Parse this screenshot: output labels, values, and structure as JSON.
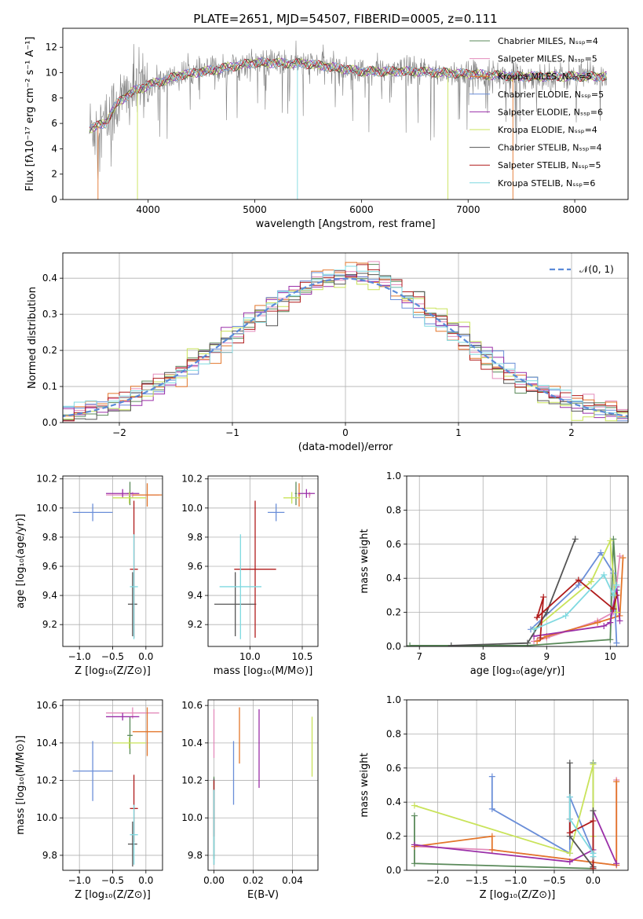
{
  "figure_title": "PLATE=2651, MJD=54507, FIBERID=0005, z=0.111",
  "colors": {
    "chabrier_miles": "#5a8a5a",
    "salpeter_miles": "#e38bbb",
    "kroupa_miles": "#e3762b",
    "chabrier_elodie": "#6a8ed8",
    "salpeter_elodie": "#9a2fa8",
    "kroupa_elodie": "#c9e35a",
    "chabrier_stelib": "#555555",
    "salpeter_stelib": "#b01c1c",
    "kroupa_stelib": "#7fd9e0",
    "data_spectrum": "#808080",
    "gaussian": "#5b8ad8"
  },
  "chart_data": [
    {
      "id": "spectrum",
      "type": "line",
      "xlabel": "wavelength [Angstrom, rest frame]",
      "ylabel": "Flux [fλ10⁻¹⁷ erg cm⁻² s⁻¹ A⁻¹]",
      "xlim": [
        3200,
        8500
      ],
      "ylim": [
        0,
        13.5
      ],
      "xticks": [
        4000,
        5000,
        6000,
        7000,
        8000
      ],
      "yticks": [
        0,
        2,
        4,
        6,
        8,
        10,
        12
      ],
      "grid": false,
      "legend_position": "top-right",
      "legend": [
        "Chabrier MILES, Nₛₛₚ=4",
        "Salpeter MILES, Nₛₛₚ=5",
        "Kroupa MILES, Nₛₛₚ=5",
        "Chabrier ELODIE, Nₛₛₚ=5",
        "Salpeter ELODIE, Nₛₛₚ=6",
        "Kroupa ELODIE, Nₛₛₚ=4",
        "Chabrier STELIB, Nₛₛₚ=4",
        "Salpeter STELIB, Nₛₛₚ=5",
        "Kroupa STELIB, Nₛₛₚ=6"
      ],
      "continuum": [
        [
          3450,
          5.6
        ],
        [
          3600,
          6.0
        ],
        [
          3700,
          7.5
        ],
        [
          3850,
          8.5
        ],
        [
          4000,
          9.0
        ],
        [
          4300,
          9.8
        ],
        [
          4600,
          10.2
        ],
        [
          5000,
          10.8
        ],
        [
          5500,
          10.7
        ],
        [
          6000,
          10.1
        ],
        [
          6500,
          10.1
        ],
        [
          7000,
          9.9
        ],
        [
          7500,
          9.7
        ],
        [
          8000,
          9.7
        ],
        [
          8300,
          9.7
        ]
      ]
    },
    {
      "id": "residuals",
      "type": "histogram",
      "xlabel": "(data-model)/error",
      "ylabel": "Normed distribution",
      "xlim": [
        -2.5,
        2.5
      ],
      "ylim": [
        0,
        0.47
      ],
      "xticks": [
        -2,
        -1,
        0,
        1,
        2
      ],
      "yticks": [
        0.0,
        0.1,
        0.2,
        0.3,
        0.4
      ],
      "grid": true,
      "bin_width": 0.1,
      "legend": [
        "𝒩(0, 1)"
      ],
      "legend_position": "top-right"
    },
    {
      "id": "age_vs_Z",
      "type": "errorbar",
      "xlabel": "Z [log₁₀(Z/Z⊙)]",
      "ylabel": "age  [log₁₀(age/yr)]",
      "xlim": [
        -1.25,
        0.25
      ],
      "ylim": [
        9.05,
        10.22
      ],
      "xticks": [
        -1.0,
        -0.5,
        0.0
      ],
      "yticks": [
        9.2,
        9.4,
        9.6,
        9.8,
        10.0,
        10.2
      ],
      "grid": true,
      "points": [
        {
          "model": "chabrier_miles",
          "x": -0.24,
          "y": 10.1,
          "xerr": 0.04,
          "yerr": 0.08
        },
        {
          "model": "salpeter_miles",
          "x": -0.2,
          "y": 10.09,
          "xerr": 0.4,
          "yerr": 0.02
        },
        {
          "model": "kroupa_miles",
          "x": 0.02,
          "y": 10.09,
          "xerr": 0.22,
          "yerr": 0.08
        },
        {
          "model": "chabrier_elodie",
          "x": -0.8,
          "y": 9.97,
          "xerr": 0.3,
          "yerr": 0.06
        },
        {
          "model": "salpeter_elodie",
          "x": -0.35,
          "y": 10.1,
          "xerr": 0.25,
          "yerr": 0.03
        },
        {
          "model": "kroupa_elodie",
          "x": -0.25,
          "y": 10.07,
          "xerr": 0.25,
          "yerr": 0.04
        },
        {
          "model": "chabrier_stelib",
          "x": -0.2,
          "y": 9.34,
          "xerr": 0.07,
          "yerr": 0.22
        },
        {
          "model": "salpeter_stelib",
          "x": -0.18,
          "y": 9.58,
          "xerr": 0.06,
          "yerr": 0.47
        },
        {
          "model": "kroupa_stelib",
          "x": -0.18,
          "y": 9.46,
          "xerr": 0.06,
          "yerr": 0.36
        }
      ]
    },
    {
      "id": "age_vs_mass",
      "type": "errorbar",
      "xlabel": "mass [log₁₀(M/M⊙)]",
      "xlim": [
        9.6,
        10.65
      ],
      "ylim": [
        9.05,
        10.22
      ],
      "xticks": [
        10.0,
        10.5
      ],
      "yticks": [
        9.2,
        9.4,
        9.6,
        9.8,
        10.0,
        10.2
      ],
      "grid": true,
      "points": [
        {
          "model": "chabrier_miles",
          "x": 10.44,
          "y": 10.1,
          "xerr": 0.01,
          "yerr": 0.08
        },
        {
          "model": "salpeter_miles",
          "x": 10.57,
          "y": 10.09,
          "xerr": 0.01,
          "yerr": 0.02
        },
        {
          "model": "kroupa_miles",
          "x": 10.47,
          "y": 10.09,
          "xerr": 0.01,
          "yerr": 0.08
        },
        {
          "model": "chabrier_elodie",
          "x": 10.25,
          "y": 9.97,
          "xerr": 0.08,
          "yerr": 0.06
        },
        {
          "model": "salpeter_elodie",
          "x": 10.54,
          "y": 10.1,
          "xerr": 0.08,
          "yerr": 0.03
        },
        {
          "model": "kroupa_elodie",
          "x": 10.4,
          "y": 10.07,
          "xerr": 0.08,
          "yerr": 0.04
        },
        {
          "model": "chabrier_stelib",
          "x": 9.86,
          "y": 9.34,
          "xerr": 0.2,
          "yerr": 0.22
        },
        {
          "model": "salpeter_stelib",
          "x": 10.05,
          "y": 9.58,
          "xerr": 0.2,
          "yerr": 0.47
        },
        {
          "model": "kroupa_stelib",
          "x": 9.91,
          "y": 9.46,
          "xerr": 0.2,
          "yerr": 0.36
        }
      ]
    },
    {
      "id": "weight_vs_age",
      "type": "line",
      "xlabel": "age  [log₁₀(age/yr)]",
      "ylabel": "mass weight",
      "xlim": [
        6.8,
        10.28
      ],
      "ylim": [
        0,
        1.0
      ],
      "xticks": [
        7,
        8,
        9,
        10
      ],
      "yticks": [
        0.0,
        0.2,
        0.4,
        0.6,
        0.8,
        1.0
      ],
      "grid": true,
      "series": [
        {
          "model": "chabrier_miles",
          "x": [
            6.85,
            8.7,
            10.0,
            10.05,
            10.1
          ],
          "y": [
            0.005,
            0.005,
            0.04,
            0.63,
            0.33
          ]
        },
        {
          "model": "salpeter_miles",
          "x": [
            8.8,
            9.0,
            9.8,
            10.05,
            10.15
          ],
          "y": [
            0.03,
            0.05,
            0.15,
            0.2,
            0.53
          ]
        },
        {
          "model": "kroupa_miles",
          "x": [
            8.85,
            9.0,
            9.8,
            10.15,
            10.2
          ],
          "y": [
            0.03,
            0.06,
            0.14,
            0.18,
            0.52
          ]
        },
        {
          "model": "chabrier_elodie",
          "x": [
            8.75,
            9.5,
            9.85,
            10.05,
            10.1
          ],
          "y": [
            0.1,
            0.36,
            0.55,
            0.43,
            0.02
          ]
        },
        {
          "model": "salpeter_elodie",
          "x": [
            8.8,
            9.9,
            10.0,
            10.1,
            10.15
          ],
          "y": [
            0.06,
            0.12,
            0.14,
            0.35,
            0.15
          ]
        },
        {
          "model": "kroupa_elodie",
          "x": [
            8.8,
            9.7,
            10.0,
            10.1
          ],
          "y": [
            0.1,
            0.38,
            0.62,
            0.2
          ]
        },
        {
          "model": "chabrier_stelib",
          "x": [
            7.5,
            8.7,
            9.0,
            9.45
          ],
          "y": [
            0.005,
            0.02,
            0.2,
            0.63
          ]
        },
        {
          "model": "salpeter_stelib",
          "x": [
            8.9,
            8.95,
            8.85,
            9.5,
            10.05,
            10.1
          ],
          "y": [
            0.05,
            0.29,
            0.17,
            0.39,
            0.22,
            0.3
          ]
        },
        {
          "model": "kroupa_stelib",
          "x": [
            8.8,
            9.3,
            9.9,
            10.05,
            10.1
          ],
          "y": [
            0.1,
            0.18,
            0.42,
            0.3,
            0.36
          ]
        }
      ]
    },
    {
      "id": "mass_vs_Z",
      "type": "errorbar",
      "xlabel": "Z [log₁₀(Z/Z⊙)]",
      "ylabel": "mass [log₁₀(M/M⊙)]",
      "xlim": [
        -1.25,
        0.25
      ],
      "ylim": [
        9.72,
        10.63
      ],
      "xticks": [
        -1.0,
        -0.5,
        0.0
      ],
      "yticks": [
        9.8,
        10.0,
        10.2,
        10.4,
        10.6
      ],
      "grid": true,
      "points": [
        {
          "model": "chabrier_miles",
          "x": -0.24,
          "y": 10.44,
          "xerr": 0.04,
          "yerr": 0.1
        },
        {
          "model": "salpeter_miles",
          "x": -0.2,
          "y": 10.56,
          "xerr": 0.4,
          "yerr": 0.03
        },
        {
          "model": "kroupa_miles",
          "x": 0.02,
          "y": 10.46,
          "xerr": 0.22,
          "yerr": 0.13
        },
        {
          "model": "chabrier_elodie",
          "x": -0.8,
          "y": 10.25,
          "xerr": 0.3,
          "yerr": 0.16
        },
        {
          "model": "salpeter_elodie",
          "x": -0.35,
          "y": 10.54,
          "xerr": 0.25,
          "yerr": 0.02
        },
        {
          "model": "kroupa_elodie",
          "x": -0.25,
          "y": 10.4,
          "xerr": 0.25,
          "yerr": 0.03
        },
        {
          "model": "chabrier_stelib",
          "x": -0.2,
          "y": 9.86,
          "xerr": 0.07,
          "yerr": 0.12
        },
        {
          "model": "salpeter_stelib",
          "x": -0.18,
          "y": 10.05,
          "xerr": 0.06,
          "yerr": 0.18
        },
        {
          "model": "kroupa_stelib",
          "x": -0.18,
          "y": 9.91,
          "xerr": 0.06,
          "yerr": 0.16
        }
      ]
    },
    {
      "id": "mass_vs_ebv",
      "type": "errorbar",
      "xlabel": "E(B-V)",
      "xlim": [
        -0.003,
        0.053
      ],
      "ylim": [
        9.72,
        10.63
      ],
      "xticks": [
        0.0,
        0.02,
        0.04
      ],
      "yticks": [
        9.8,
        10.0,
        10.2,
        10.4,
        10.6
      ],
      "grid": true,
      "points": [
        {
          "model": "chabrier_miles",
          "x": 0.0,
          "y": 10.0,
          "xerr": 0.0,
          "yerr": 0.22
        },
        {
          "model": "salpeter_miles",
          "x": 0.0,
          "y": 10.45,
          "xerr": 0.0,
          "yerr": 0.13
        },
        {
          "model": "kroupa_miles",
          "x": 0.013,
          "y": 10.44,
          "xerr": 0.0,
          "yerr": 0.15
        },
        {
          "model": "chabrier_elodie",
          "x": 0.01,
          "y": 10.24,
          "xerr": 0.0,
          "yerr": 0.17
        },
        {
          "model": "salpeter_elodie",
          "x": 0.023,
          "y": 10.37,
          "xerr": 0.0,
          "yerr": 0.21
        },
        {
          "model": "kroupa_elodie",
          "x": 0.05,
          "y": 10.38,
          "xerr": 0.0,
          "yerr": 0.16
        },
        {
          "model": "chabrier_stelib",
          "x": 0.0,
          "y": 9.98,
          "xerr": 0.0,
          "yerr": 0.23
        },
        {
          "model": "salpeter_stelib",
          "x": 0.0,
          "y": 10.05,
          "xerr": 0.0,
          "yerr": 0.15
        },
        {
          "model": "kroupa_stelib",
          "x": 0.0,
          "y": 9.95,
          "xerr": 0.0,
          "yerr": 0.2
        }
      ]
    },
    {
      "id": "weight_vs_Z",
      "type": "line",
      "xlabel": "Z [log₁₀(Z/Z⊙)]",
      "ylabel": "mass weight",
      "xlim": [
        -2.4,
        0.45
      ],
      "ylim": [
        0,
        1.0
      ],
      "xticks": [
        -2.0,
        -1.5,
        -1.0,
        -0.5,
        0.0
      ],
      "yticks": [
        0.0,
        0.2,
        0.4,
        0.6,
        0.8,
        1.0
      ],
      "grid": true,
      "series": [
        {
          "model": "chabrier_miles",
          "x": [
            -2.3,
            -2.3,
            -2.3,
            0.0,
            0.0
          ],
          "y": [
            0.32,
            0.15,
            0.04,
            0.01,
            0.63
          ]
        },
        {
          "model": "salpeter_miles",
          "x": [
            -2.3,
            -1.3,
            0.3,
            0.3
          ],
          "y": [
            0.14,
            0.12,
            0.03,
            0.53
          ]
        },
        {
          "model": "kroupa_miles",
          "x": [
            -2.3,
            -1.3,
            -1.3,
            0.3,
            0.3
          ],
          "y": [
            0.14,
            0.2,
            0.12,
            0.03,
            0.52
          ]
        },
        {
          "model": "chabrier_elodie",
          "x": [
            -1.3,
            -1.3,
            -0.3,
            -0.3,
            0.0,
            0.0
          ],
          "y": [
            0.55,
            0.36,
            0.1,
            0.43,
            0.1,
            0.02
          ]
        },
        {
          "model": "salpeter_elodie",
          "x": [
            -2.3,
            -0.3,
            0.0,
            0.0,
            0.3
          ],
          "y": [
            0.15,
            0.05,
            0.12,
            0.35,
            0.04
          ]
        },
        {
          "model": "kroupa_elodie",
          "x": [
            -2.3,
            -0.3,
            0.0,
            0.0
          ],
          "y": [
            0.38,
            0.1,
            0.62,
            0.2
          ]
        },
        {
          "model": "chabrier_stelib",
          "x": [
            -0.3,
            -0.3,
            0.0,
            0.0
          ],
          "y": [
            0.63,
            0.2,
            0.02,
            0.35
          ]
        },
        {
          "model": "salpeter_stelib",
          "x": [
            -0.3,
            -0.3,
            0.0,
            0.0
          ],
          "y": [
            0.3,
            0.22,
            0.29,
            0.01
          ]
        },
        {
          "model": "kroupa_stelib",
          "x": [
            -0.3,
            -0.3,
            0.0,
            0.0
          ],
          "y": [
            0.43,
            0.3,
            0.1,
            0.08
          ]
        }
      ]
    }
  ]
}
